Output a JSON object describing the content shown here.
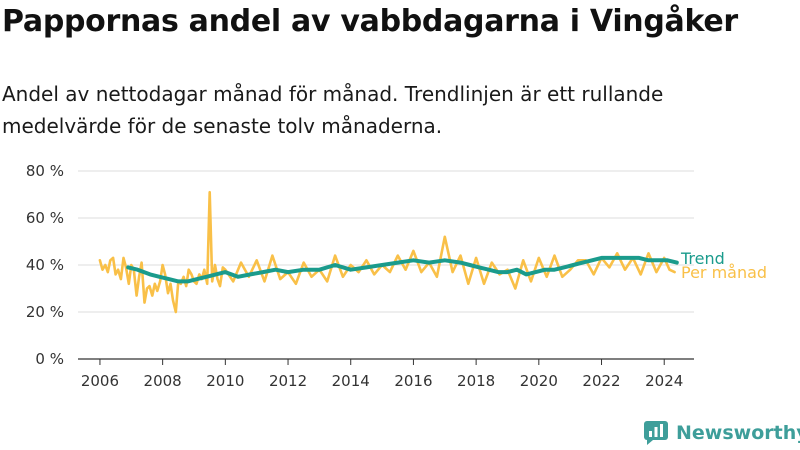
{
  "chart_data": {
    "type": "line",
    "title": "Pappornas andel av vabbdagarna i Vingåker",
    "subtitle": "Andel av nettodagar månad för månad. Trendlinjen är ett rullande medelvärde för de senaste tolv månaderna.",
    "xlabel": "",
    "ylabel": "",
    "xlim": [
      2005.3,
      2024.95
    ],
    "ylim": [
      0,
      80
    ],
    "x_ticks": [
      2006,
      2008,
      2010,
      2012,
      2014,
      2016,
      2018,
      2020,
      2022,
      2024
    ],
    "x_tick_labels": [
      "2006",
      "2008",
      "2010",
      "2012",
      "2014",
      "2016",
      "2018",
      "2020",
      "2022",
      "2024"
    ],
    "y_ticks": [
      0,
      20,
      40,
      60,
      80
    ],
    "y_tick_labels": [
      "0 %",
      "20 %",
      "40 %",
      "60 %",
      "80 %"
    ],
    "grid": "horizontal",
    "legend": "end-of-line labels",
    "series": [
      {
        "name": "Per månad",
        "color": "#f9c048",
        "x": [
          2006.0,
          2006.08,
          2006.17,
          2006.25,
          2006.33,
          2006.42,
          2006.5,
          2006.58,
          2006.67,
          2006.75,
          2006.83,
          2006.92,
          2007.0,
          2007.08,
          2007.17,
          2007.25,
          2007.33,
          2007.42,
          2007.5,
          2007.58,
          2007.67,
          2007.75,
          2007.83,
          2007.92,
          2008.0,
          2008.08,
          2008.17,
          2008.25,
          2008.33,
          2008.42,
          2008.5,
          2008.58,
          2008.67,
          2008.75,
          2008.83,
          2008.92,
          2009.0,
          2009.08,
          2009.17,
          2009.25,
          2009.33,
          2009.42,
          2009.5,
          2009.58,
          2009.67,
          2009.75,
          2009.83,
          2009.92,
          2010.0,
          2010.25,
          2010.5,
          2010.75,
          2011.0,
          2011.25,
          2011.5,
          2011.75,
          2012.0,
          2012.25,
          2012.5,
          2012.75,
          2013.0,
          2013.25,
          2013.5,
          2013.75,
          2014.0,
          2014.25,
          2014.5,
          2014.75,
          2015.0,
          2015.25,
          2015.5,
          2015.75,
          2016.0,
          2016.25,
          2016.5,
          2016.75,
          2017.0,
          2017.25,
          2017.5,
          2017.75,
          2018.0,
          2018.25,
          2018.5,
          2018.75,
          2019.0,
          2019.25,
          2019.5,
          2019.75,
          2020.0,
          2020.25,
          2020.5,
          2020.75,
          2021.0,
          2021.25,
          2021.5,
          2021.75,
          2022.0,
          2022.25,
          2022.5,
          2022.75,
          2023.0,
          2023.25,
          2023.5,
          2023.75,
          2024.0,
          2024.17,
          2024.33
        ],
        "y": [
          42,
          38,
          40,
          37,
          42,
          43,
          36,
          38,
          34,
          43,
          39,
          32,
          40,
          38,
          27,
          35,
          41,
          24,
          30,
          31,
          27,
          32,
          29,
          33,
          40,
          36,
          28,
          32,
          25,
          20,
          33,
          32,
          35,
          31,
          38,
          36,
          33,
          32,
          36,
          34,
          38,
          32,
          71,
          33,
          40,
          34,
          31,
          39,
          38,
          33,
          41,
          35,
          42,
          33,
          44,
          34,
          37,
          32,
          41,
          35,
          38,
          33,
          44,
          35,
          40,
          37,
          42,
          36,
          40,
          37,
          44,
          38,
          46,
          37,
          41,
          35,
          52,
          37,
          44,
          32,
          43,
          32,
          41,
          36,
          38,
          30,
          42,
          33,
          43,
          35,
          44,
          35,
          38,
          42,
          42,
          36,
          43,
          39,
          45,
          38,
          43,
          36,
          45,
          37,
          43,
          38,
          37
        ]
      },
      {
        "name": "Trend",
        "color": "#1a9b8c",
        "x": [
          2006.9,
          2007.2,
          2007.6,
          2007.9,
          2008.2,
          2008.5,
          2008.8,
          2009.1,
          2009.4,
          2009.7,
          2010.0,
          2010.4,
          2010.8,
          2011.2,
          2011.6,
          2012.0,
          2012.5,
          2013.0,
          2013.5,
          2014.0,
          2014.5,
          2015.0,
          2015.5,
          2016.0,
          2016.5,
          2017.0,
          2017.5,
          2017.8,
          2018.1,
          2018.4,
          2018.7,
          2019.0,
          2019.3,
          2019.6,
          2019.9,
          2020.2,
          2020.5,
          2020.8,
          2021.1,
          2021.4,
          2021.7,
          2022.0,
          2022.3,
          2022.6,
          2022.9,
          2023.2,
          2023.5,
          2023.8,
          2024.1,
          2024.4
        ],
        "y": [
          39,
          38,
          36,
          35,
          34,
          33,
          33,
          34,
          35,
          36,
          37,
          35,
          36,
          37,
          38,
          37,
          38,
          38,
          40,
          38,
          39,
          40,
          41,
          42,
          41,
          42,
          41,
          40,
          39,
          38,
          37,
          37,
          38,
          36,
          37,
          38,
          38,
          39,
          40,
          41,
          42,
          43,
          43,
          43,
          43,
          43,
          42,
          42,
          42,
          41
        ]
      }
    ]
  },
  "branding": {
    "name": "Newsworthy",
    "icon": "newsworthy-logo-icon",
    "color": "#3e9e9a"
  }
}
